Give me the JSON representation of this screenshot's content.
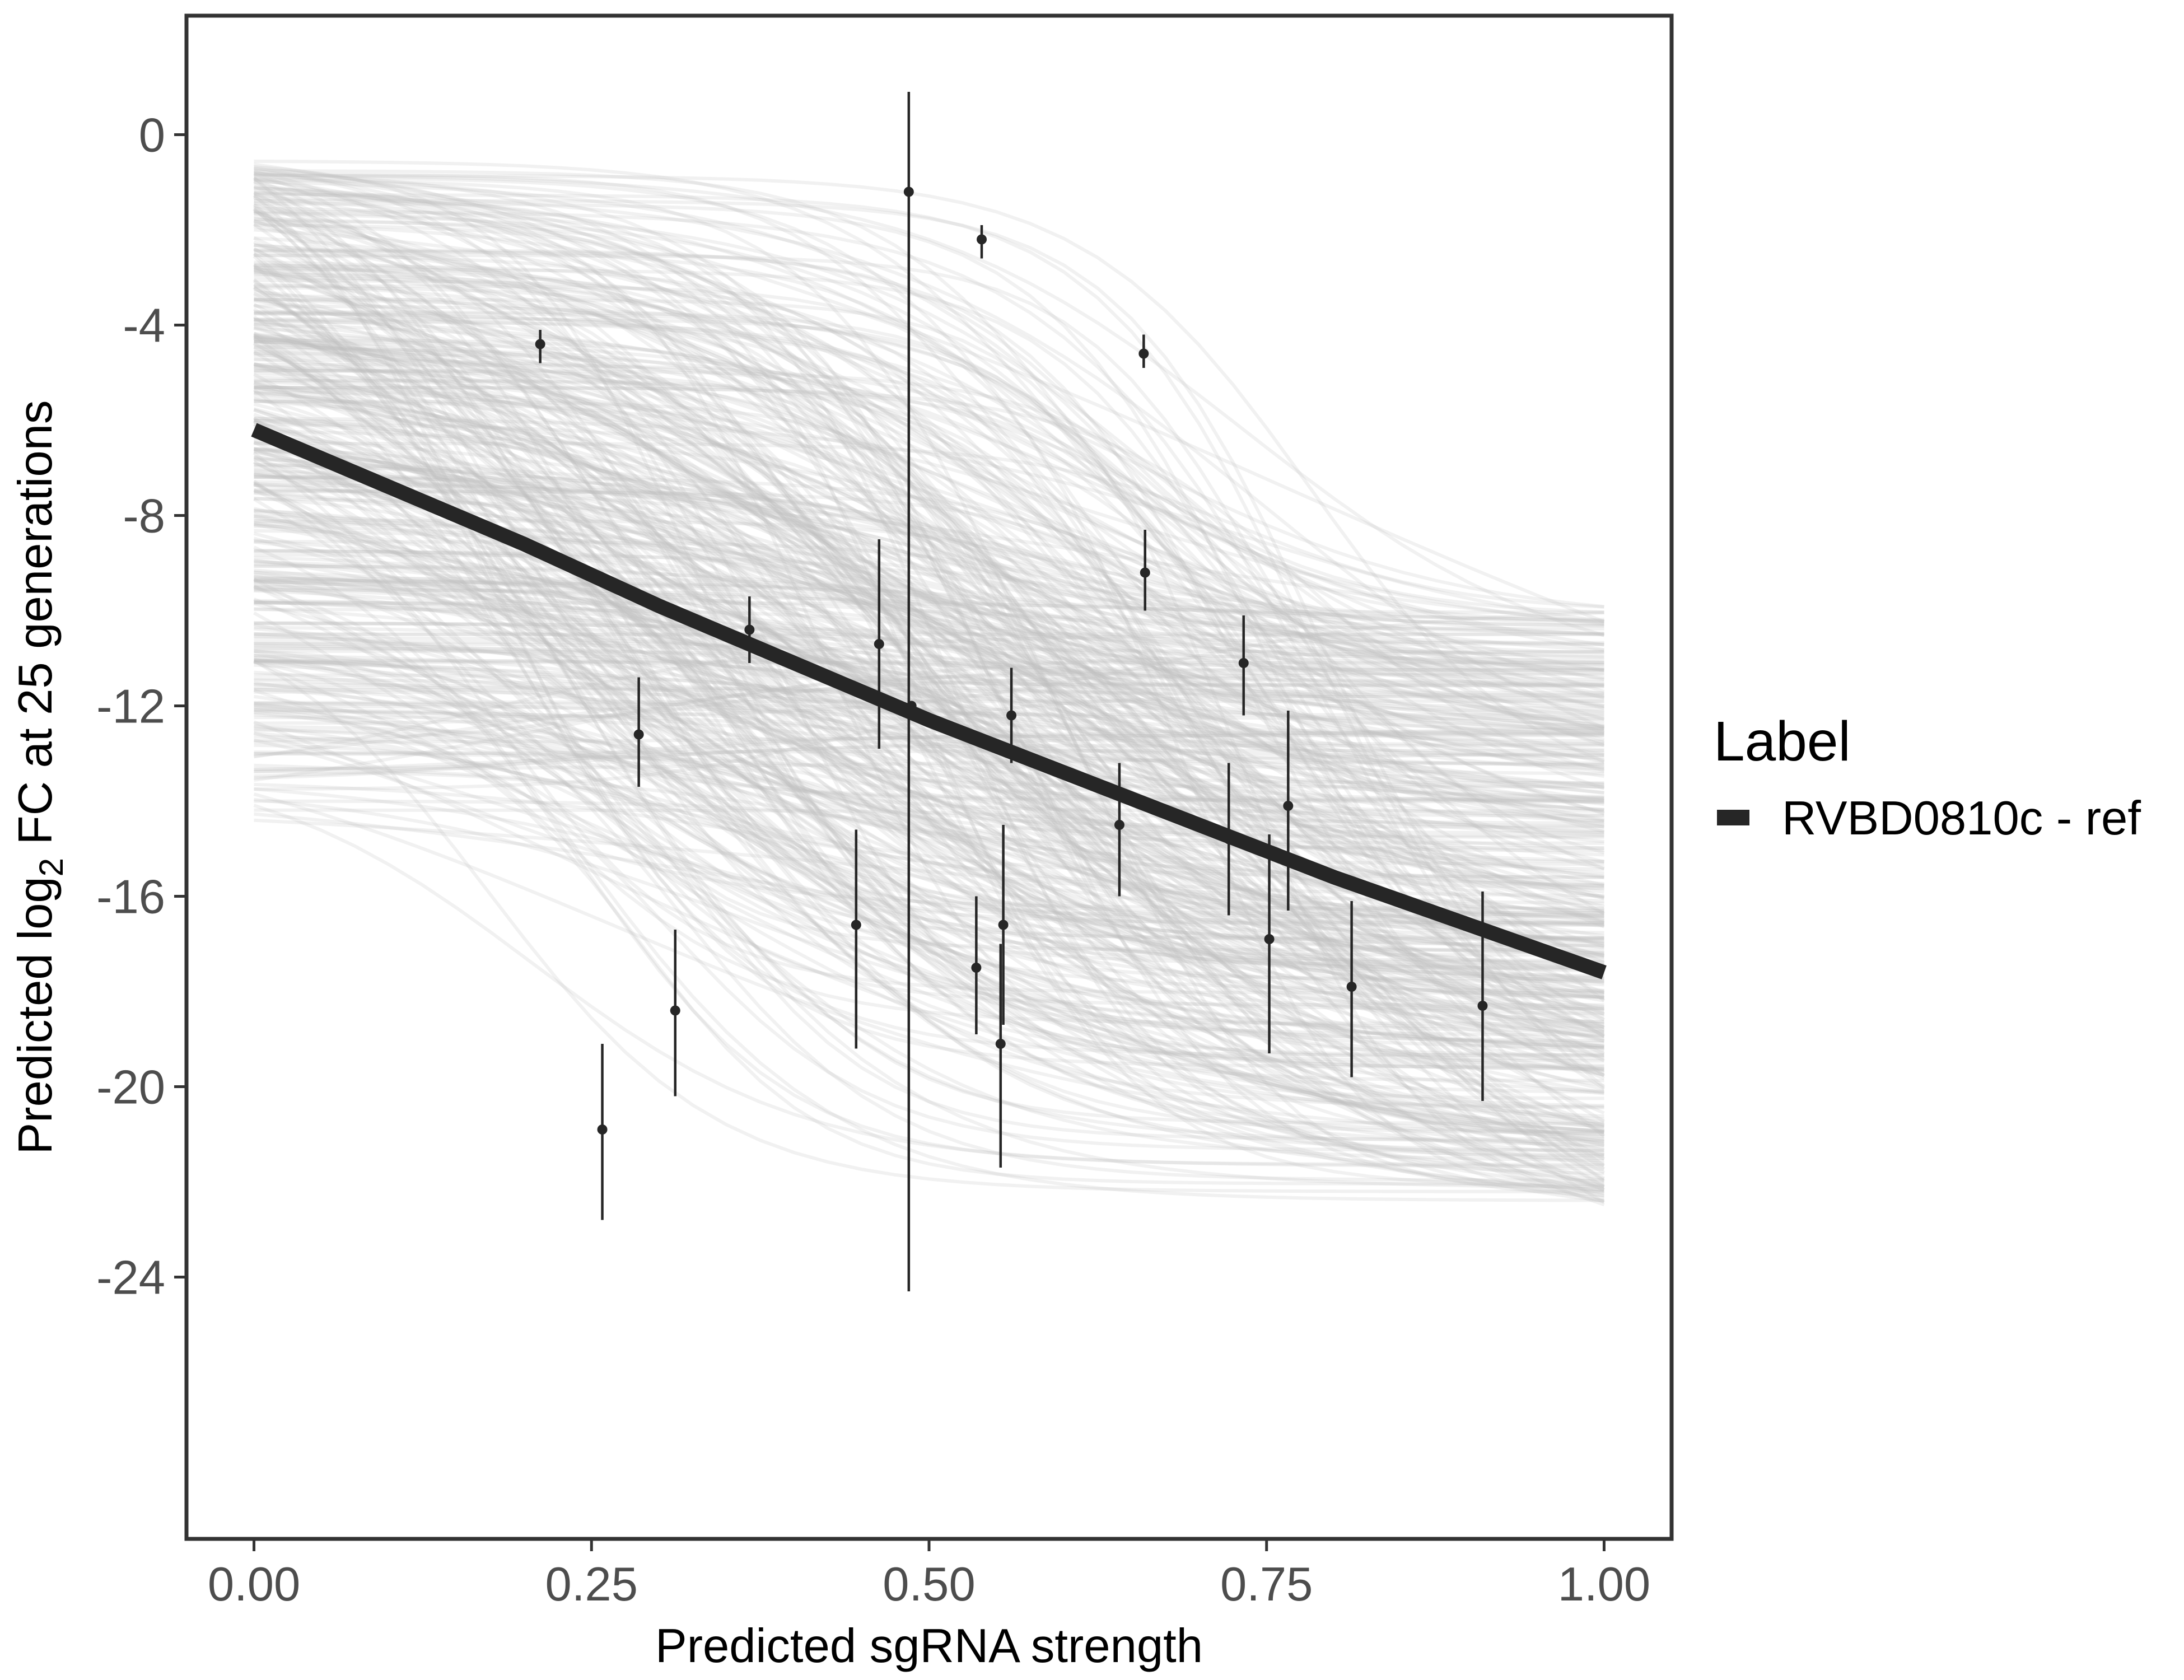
{
  "chart_data": {
    "type": "line",
    "xlabel": "Predicted sgRNA strength",
    "ylabel_parts": [
      "Predicted  log",
      "2",
      " FC at 25 generations"
    ],
    "xlim": [
      -0.05,
      1.05
    ],
    "ylim": [
      -29.5,
      2.5
    ],
    "x_ticks": [
      0.0,
      0.25,
      0.5,
      0.75,
      1.0
    ],
    "x_tick_labels": [
      "0.00",
      "0.25",
      "0.50",
      "0.75",
      "1.00"
    ],
    "y_ticks": [
      0,
      -4,
      -8,
      -12,
      -16,
      -20,
      -24
    ],
    "y_tick_labels": [
      "0",
      "-4",
      "-8",
      "-12",
      "-16",
      "-20",
      "-24"
    ],
    "grid": false,
    "legend": {
      "title": "Label",
      "position": "right",
      "entries": [
        {
          "name": "RVBD0810c - ref",
          "color": "#262626"
        }
      ]
    },
    "fit_line": {
      "name": "RVBD0810c - ref",
      "color": "#262626",
      "x": [
        0.0,
        0.1,
        0.2,
        0.3,
        0.4,
        0.5,
        0.6,
        0.7,
        0.8,
        0.9,
        1.0
      ],
      "y": [
        -6.2,
        -7.4,
        -8.6,
        -9.9,
        -11.1,
        -12.3,
        -13.4,
        -14.5,
        -15.6,
        -16.6,
        -17.6
      ]
    },
    "posterior_draws": {
      "color": "#bdbdbd",
      "count": 450,
      "start_range": [
        -14.5,
        -0.5
      ],
      "end_range": [
        -22.5,
        -9.8
      ]
    },
    "points": [
      {
        "x": 0.212,
        "y": -4.4,
        "lo": -4.8,
        "hi": -4.1
      },
      {
        "x": 0.258,
        "y": -20.9,
        "lo": -22.8,
        "hi": -19.1
      },
      {
        "x": 0.285,
        "y": -12.6,
        "lo": -13.7,
        "hi": -11.4
      },
      {
        "x": 0.312,
        "y": -18.4,
        "lo": -20.2,
        "hi": -16.7
      },
      {
        "x": 0.367,
        "y": -10.4,
        "lo": -11.1,
        "hi": -9.7
      },
      {
        "x": 0.446,
        "y": -16.6,
        "lo": -19.2,
        "hi": -14.6
      },
      {
        "x": 0.463,
        "y": -10.7,
        "lo": -12.9,
        "hi": -8.5
      },
      {
        "x": 0.485,
        "y": -1.2,
        "lo": -24.3,
        "hi": 0.9
      },
      {
        "x": 0.487,
        "y": -12.0,
        "lo": -12.0,
        "hi": -12.0
      },
      {
        "x": 0.535,
        "y": -17.5,
        "lo": -18.9,
        "hi": -16.0
      },
      {
        "x": 0.539,
        "y": -2.2,
        "lo": -2.6,
        "hi": -1.9
      },
      {
        "x": 0.553,
        "y": -19.1,
        "lo": -21.7,
        "hi": -17.0
      },
      {
        "x": 0.555,
        "y": -16.6,
        "lo": -18.7,
        "hi": -14.5
      },
      {
        "x": 0.561,
        "y": -12.2,
        "lo": -13.2,
        "hi": -11.2
      },
      {
        "x": 0.641,
        "y": -14.5,
        "lo": -16.0,
        "hi": -13.2
      },
      {
        "x": 0.659,
        "y": -4.6,
        "lo": -4.9,
        "hi": -4.2
      },
      {
        "x": 0.66,
        "y": -9.2,
        "lo": -10.0,
        "hi": -8.3
      },
      {
        "x": 0.722,
        "y": -14.8,
        "lo": -16.4,
        "hi": -13.2
      },
      {
        "x": 0.733,
        "y": -11.1,
        "lo": -12.2,
        "hi": -10.1
      },
      {
        "x": 0.752,
        "y": -16.9,
        "lo": -19.3,
        "hi": -14.7
      },
      {
        "x": 0.766,
        "y": -14.1,
        "lo": -16.3,
        "hi": -12.1
      },
      {
        "x": 0.813,
        "y": -17.9,
        "lo": -19.8,
        "hi": -16.1
      },
      {
        "x": 0.91,
        "y": -18.3,
        "lo": -20.3,
        "hi": -15.9
      }
    ]
  }
}
